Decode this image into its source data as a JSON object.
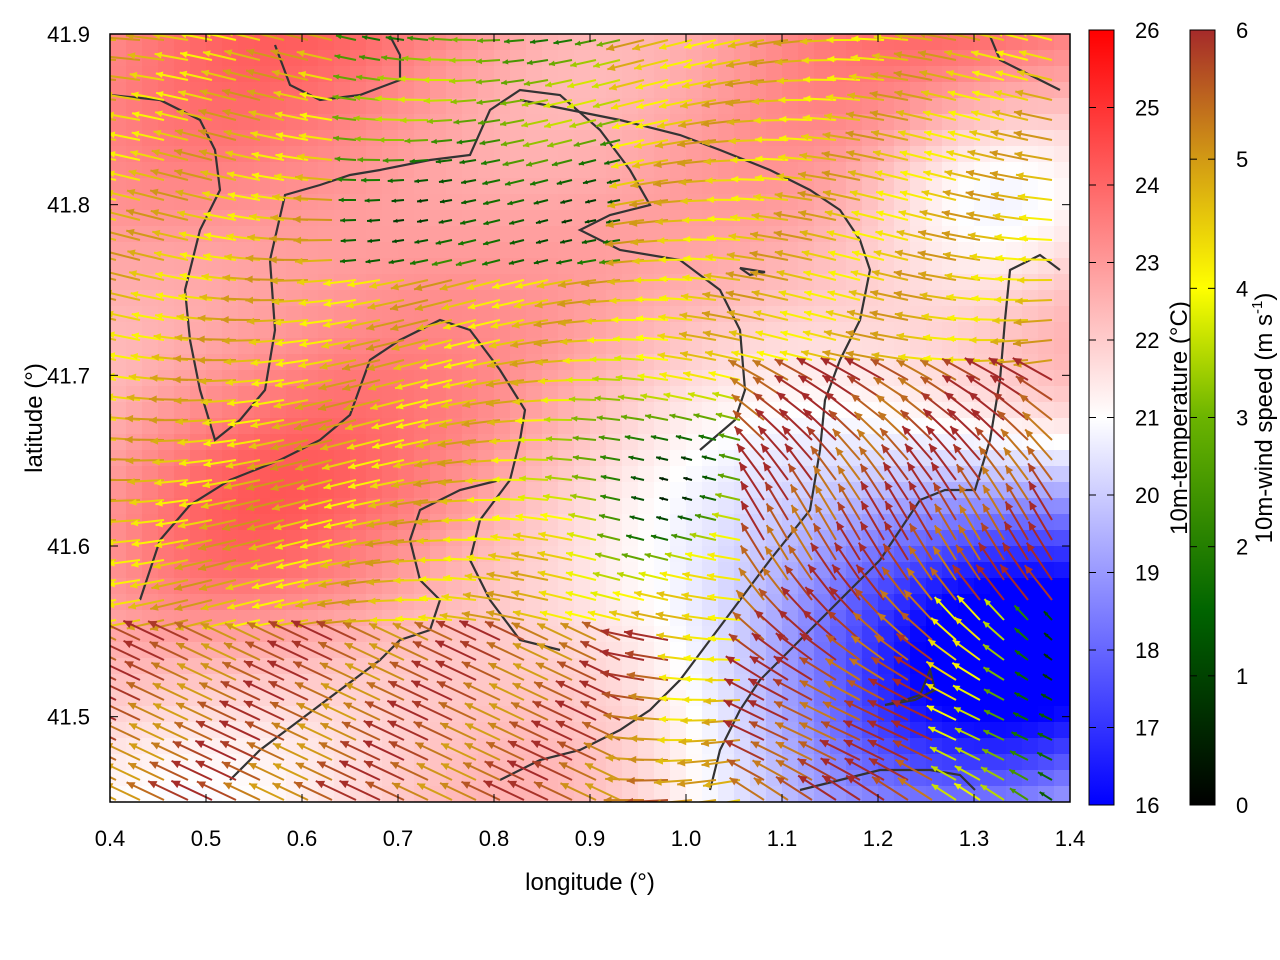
{
  "chart_data": {
    "type": "heatmap",
    "title": "",
    "xlabel": "longitude (°)",
    "ylabel": "latitude (°)",
    "xlim": [
      0.4,
      1.4
    ],
    "ylim": [
      41.45,
      41.9
    ],
    "x_ticks": [
      "0.4",
      "0.5",
      "0.6",
      "0.7",
      "0.8",
      "0.9",
      "1.0",
      "1.1",
      "1.2",
      "1.3",
      "1.4"
    ],
    "y_ticks": [
      "41.5",
      "41.6",
      "41.7",
      "41.8",
      "41.9"
    ],
    "overlays": [
      "10m-wind vectors (colored by speed)",
      "terrain contour lines"
    ],
    "colorbars": [
      {
        "name": "temperature",
        "label": "10m-temperature (°C)",
        "range": [
          16,
          26
        ],
        "ticks": [
          "16",
          "17",
          "18",
          "19",
          "20",
          "21",
          "22",
          "23",
          "24",
          "25",
          "26"
        ],
        "colors": [
          "#0000ff",
          "#ffffff",
          "#ff0000"
        ]
      },
      {
        "name": "wind-speed",
        "label": "10m-wind speed (m s",
        "label_sup": "-1",
        "label_end": ")",
        "range": [
          0,
          6
        ],
        "ticks": [
          "0",
          "1",
          "2",
          "3",
          "4",
          "5",
          "6"
        ],
        "colors": [
          "#000000",
          "#006400",
          "#32cd32",
          "#ffff00",
          "#daa520",
          "#a52a2a"
        ]
      }
    ]
  }
}
